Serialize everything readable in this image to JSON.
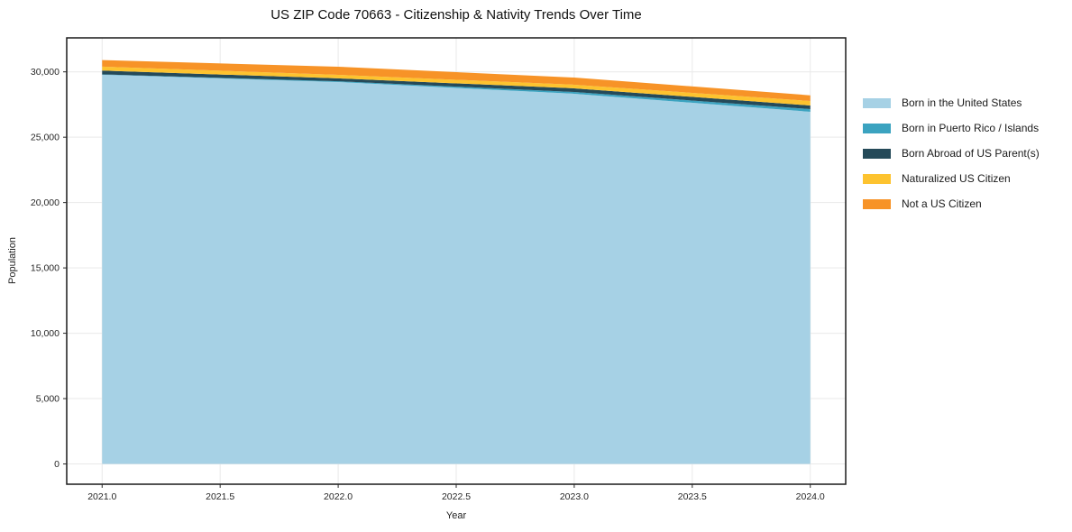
{
  "page": {
    "background": "#ffffff"
  },
  "chart_data": {
    "type": "area",
    "stacked": true,
    "title": "US ZIP Code 70663 - Citizenship & Nativity Trends Over Time",
    "xlabel": "Year",
    "ylabel": "Population",
    "x": [
      2021,
      2022,
      2023,
      2024
    ],
    "series": [
      {
        "name": "Born in the United States",
        "color": "#a6d1e5",
        "values": [
          29780,
          29220,
          28325,
          26945
        ]
      },
      {
        "name": "Born in Puerto Rico / Islands",
        "color": "#3ba3c0",
        "values": [
          30,
          60,
          135,
          205
        ]
      },
      {
        "name": "Born Abroad of US Parent(s)",
        "color": "#254a59",
        "values": [
          290,
          220,
          280,
          275
        ]
      },
      {
        "name": "Naturalized US Citizen",
        "color": "#fdc32f",
        "values": [
          300,
          275,
          275,
          345
        ]
      },
      {
        "name": "Not a US Citizen",
        "color": "#f79327",
        "values": [
          500,
          620,
          550,
          435
        ]
      }
    ],
    "stacked_totals": [
      30900,
      30395,
      29565,
      28205
    ],
    "xticks": {
      "values": [
        2021.0,
        2021.5,
        2022.0,
        2022.5,
        2023.0,
        2023.5,
        2024.0
      ],
      "labels": [
        "2021.0",
        "2021.5",
        "2022.0",
        "2022.5",
        "2023.0",
        "2023.5",
        "2024.0"
      ]
    },
    "yticks": {
      "values": [
        0,
        5000,
        10000,
        15000,
        20000,
        25000,
        30000
      ],
      "labels": [
        "0",
        "5,000",
        "10,000",
        "15,000",
        "20,000",
        "25,000",
        "30,000"
      ]
    },
    "xlim": [
      2020.85,
      2024.15
    ],
    "ylim": [
      -1550,
      32600
    ],
    "grid": true,
    "grid_color": "#e9e9e9",
    "spine_color": "#1a1a1a",
    "tick_color": "#262626",
    "legend_position": "right"
  }
}
